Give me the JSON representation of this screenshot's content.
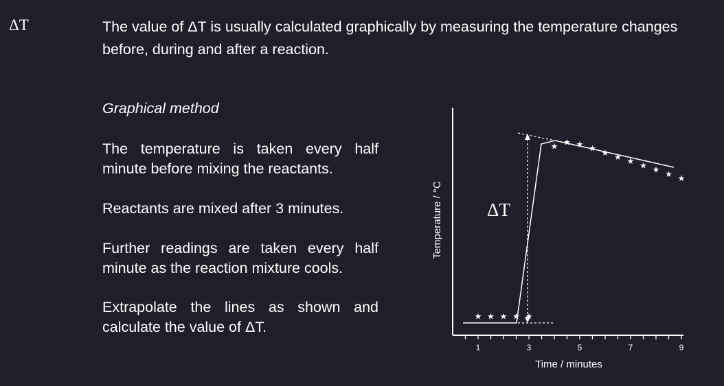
{
  "header": {
    "side_title": "ΔT",
    "intro": "The value of ΔT is usually calculated graphically by measuring the temperature changes before, during and after a reaction."
  },
  "method": {
    "heading": "Graphical method",
    "steps": [
      "The temperature is taken every half minute before mixing the reactants.",
      "Reactants are mixed after 3 minutes.",
      "Further readings are taken every half minute as the reaction mixture cools.",
      "Extrapolate the lines as shown and calculate the value of ΔT."
    ]
  },
  "chart_data": {
    "type": "line",
    "xlabel": "Time / minutes",
    "ylabel": "Temperature / °C",
    "x_tick_labels": [
      "1",
      "3",
      "5",
      "7",
      "9"
    ],
    "xlim": [
      0,
      9
    ],
    "annotation": "ΔT",
    "series": [
      {
        "values": [
          [
            1,
            0.05
          ],
          [
            1.5,
            0.05
          ],
          [
            2,
            0.05
          ],
          [
            2.5,
            0.05
          ],
          [
            3,
            0.05
          ]
        ]
      },
      {
        "values": [
          [
            4,
            0.85
          ],
          [
            4.5,
            0.87
          ],
          [
            5,
            0.86
          ],
          [
            5.5,
            0.84
          ],
          [
            6,
            0.82
          ],
          [
            6.5,
            0.8
          ],
          [
            7,
            0.78
          ],
          [
            7.5,
            0.76
          ],
          [
            8,
            0.74
          ],
          [
            8.5,
            0.72
          ],
          [
            9,
            0.7
          ]
        ]
      }
    ]
  },
  "colors": {
    "background": "#1f1e2b",
    "foreground": "#ffffff"
  }
}
